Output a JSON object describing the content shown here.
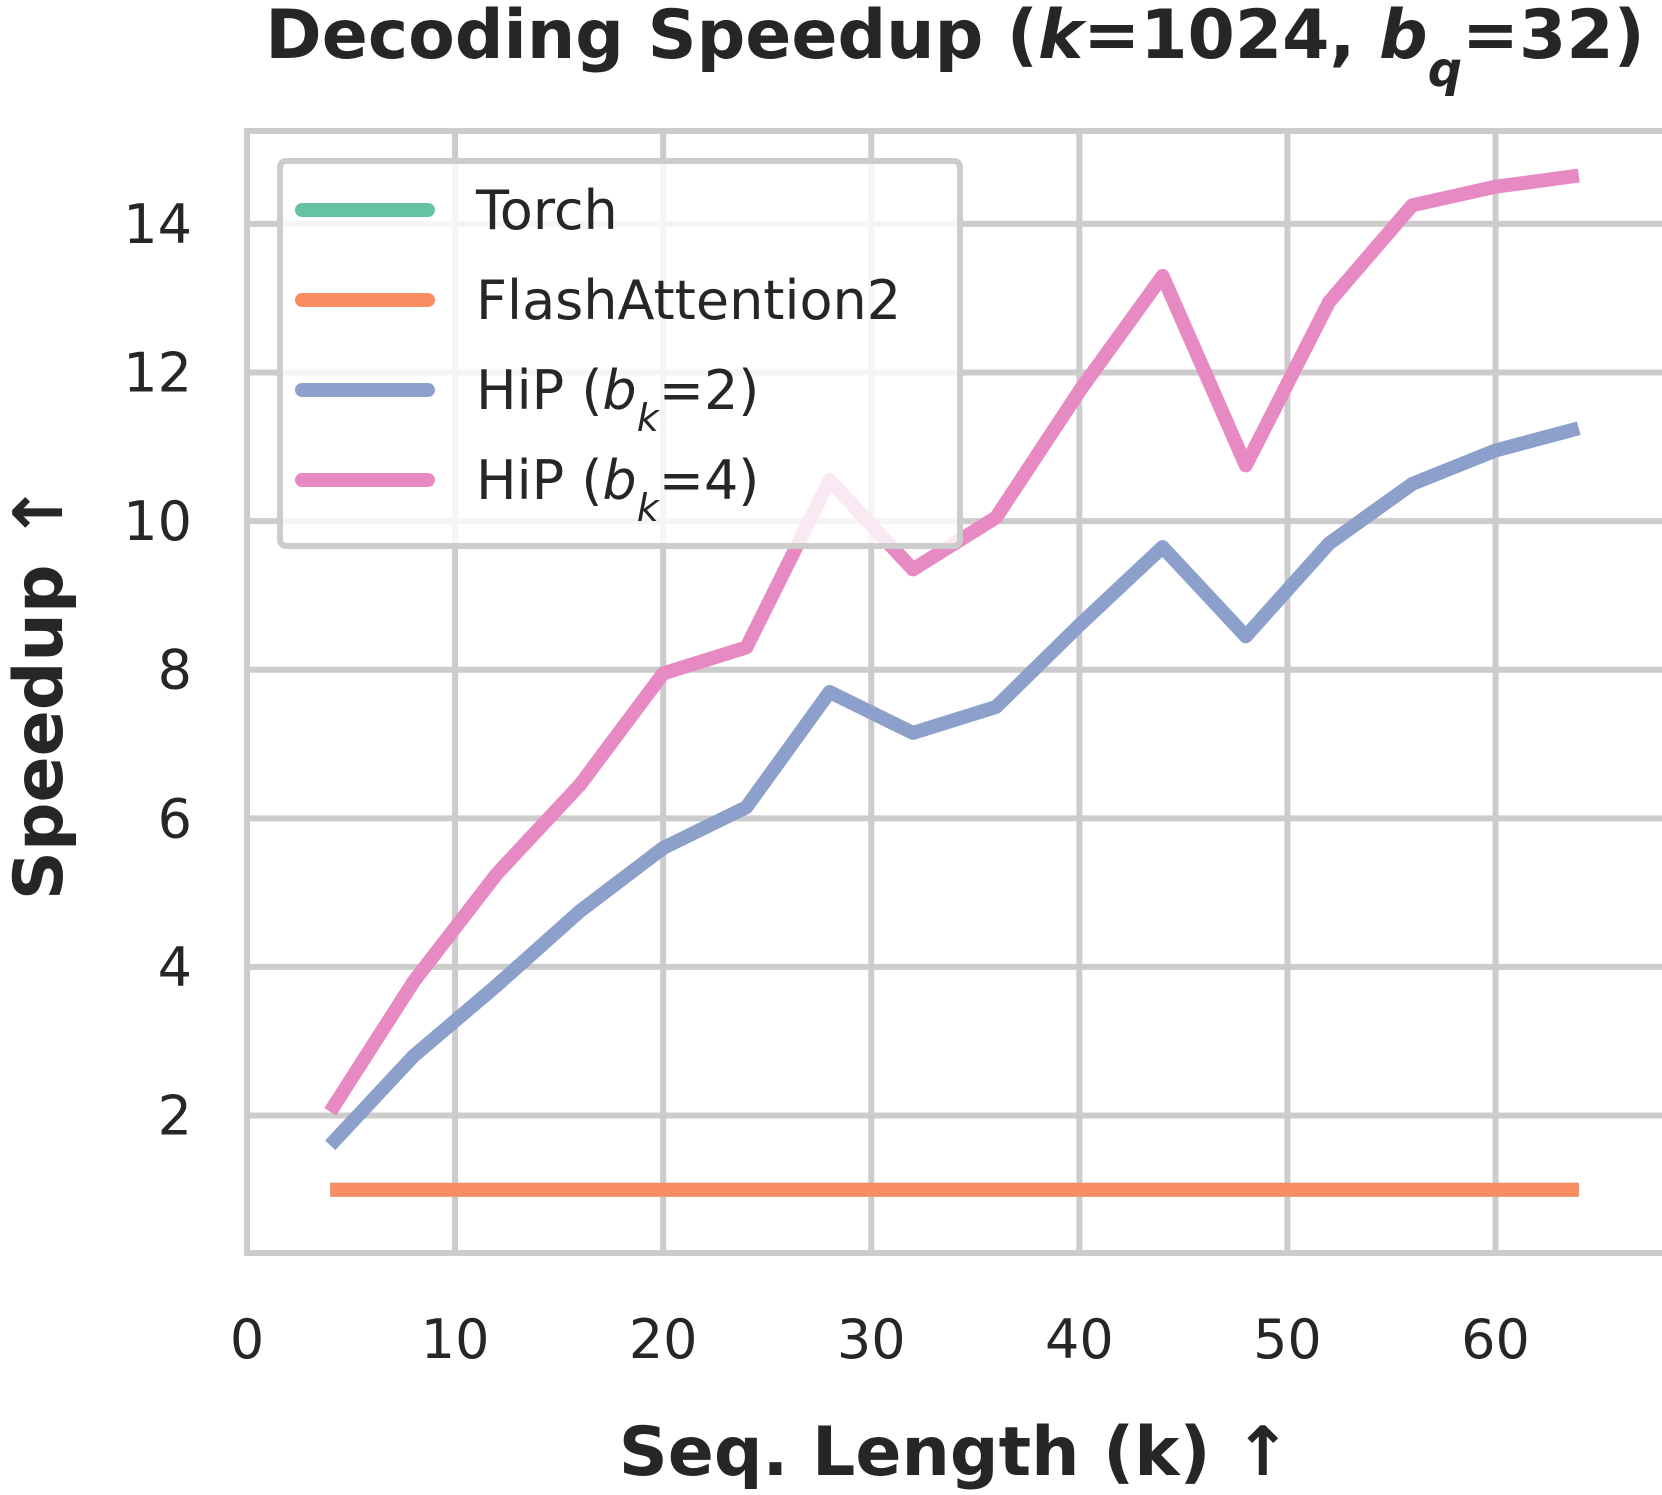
{
  "chart_data": {
    "type": "line",
    "title": "Decoding Speedup (k=1024, bq=32)",
    "title_parts": [
      {
        "text": "Decoding Speedup (",
        "style": "normal"
      },
      {
        "text": "k",
        "style": "italic"
      },
      {
        "text": "=1024, ",
        "style": "normal"
      },
      {
        "text": "b",
        "style": "italic"
      },
      {
        "text": "q",
        "style": "italic-sub"
      },
      {
        "text": "=32)",
        "style": "normal"
      }
    ],
    "xlabel": "Seq. Length (k) ↑",
    "ylabel": "Speedup ↑",
    "xlim": [
      0,
      68
    ],
    "ylim": [
      0.15,
      15.25
    ],
    "xticks": [
      0,
      10,
      20,
      30,
      40,
      50,
      60
    ],
    "yticks": [
      2,
      4,
      6,
      8,
      10,
      12,
      14
    ],
    "grid": true,
    "legend_position": "top-left",
    "x": [
      4,
      8,
      12,
      16,
      20,
      24,
      28,
      32,
      36,
      40,
      44,
      48,
      52,
      56,
      60,
      64
    ],
    "series": [
      {
        "name": "Torch",
        "label_parts": [
          {
            "text": "Torch",
            "style": "normal"
          }
        ],
        "color": "#66c2a5",
        "values": [
          1,
          1,
          1,
          1,
          1,
          1,
          1,
          1,
          1,
          1,
          1,
          1,
          1,
          1,
          1,
          1
        ]
      },
      {
        "name": "FlashAttention2",
        "label_parts": [
          {
            "text": "FlashAttention2",
            "style": "normal"
          }
        ],
        "color": "#fc8d62",
        "values": [
          1,
          1,
          1,
          1,
          1,
          1,
          1,
          1,
          1,
          1,
          1,
          1,
          1,
          1,
          1,
          1
        ]
      },
      {
        "name": "HiP (bk=2)",
        "label_parts": [
          {
            "text": "HiP (",
            "style": "normal"
          },
          {
            "text": "b",
            "style": "italic"
          },
          {
            "text": "k",
            "style": "italic-sub"
          },
          {
            "text": "=2)",
            "style": "normal"
          }
        ],
        "color": "#8da0cb",
        "values": [
          1.6,
          2.8,
          3.75,
          4.75,
          5.6,
          6.15,
          7.7,
          7.15,
          7.5,
          8.6,
          9.65,
          8.45,
          9.7,
          10.5,
          10.95,
          11.25
        ]
      },
      {
        "name": "HiP (bk=4)",
        "label_parts": [
          {
            "text": "HiP (",
            "style": "normal"
          },
          {
            "text": "b",
            "style": "italic"
          },
          {
            "text": "k",
            "style": "italic-sub"
          },
          {
            "text": "=4)",
            "style": "normal"
          }
        ],
        "color": "#e78ac3",
        "values": [
          2.05,
          3.8,
          5.25,
          6.45,
          7.95,
          8.3,
          10.55,
          9.35,
          10.05,
          11.75,
          13.3,
          10.75,
          12.95,
          14.25,
          14.5,
          14.65
        ]
      }
    ]
  }
}
